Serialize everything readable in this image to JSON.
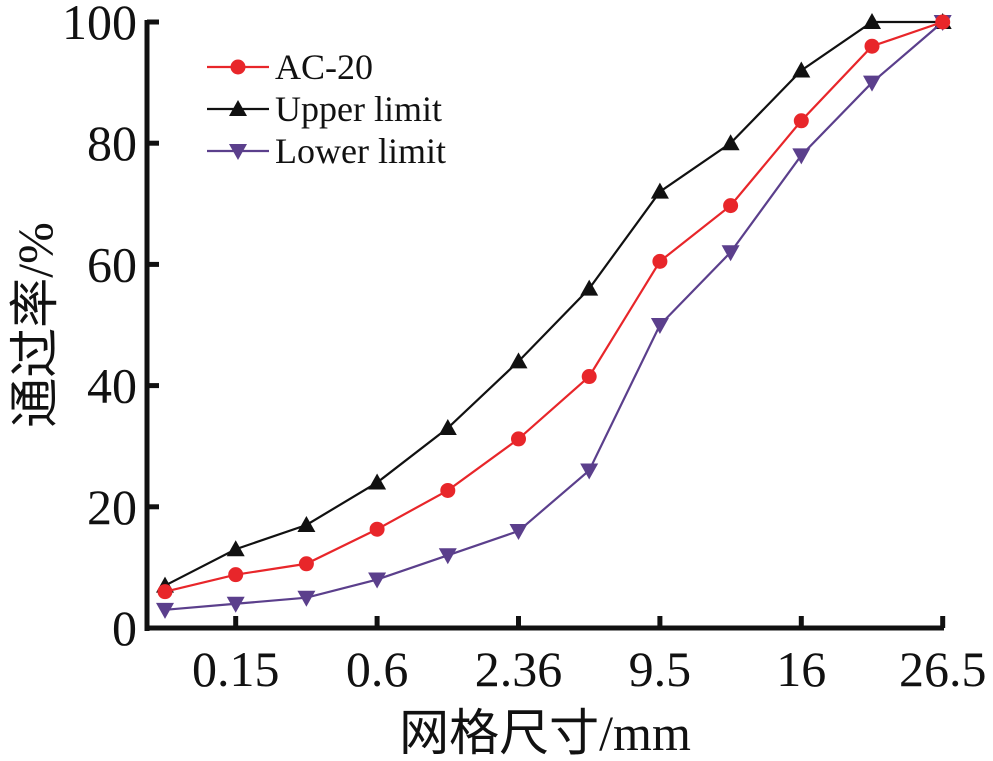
{
  "chart_data": {
    "type": "line",
    "title": "",
    "xlabel": "网格尺寸/mm",
    "ylabel": "通过率/%",
    "ylim": [
      0,
      100
    ],
    "yticks": [
      "0",
      "20",
      "40",
      "60",
      "80",
      "100"
    ],
    "xtick_labels": [
      {
        "index": 1,
        "label": "0.15"
      },
      {
        "index": 3,
        "label": "0.6"
      },
      {
        "index": 5,
        "label": "2.36"
      },
      {
        "index": 7,
        "label": "9.5"
      },
      {
        "index": 9,
        "label": "16"
      },
      {
        "index": 11,
        "label": "26.5"
      }
    ],
    "point_count": 12,
    "grid": false,
    "legend_position": "top-left",
    "series": [
      {
        "name": "AC-20",
        "color": "#e8262a",
        "marker": "circle",
        "values": [
          6,
          8.8,
          10.6,
          16.3,
          22.7,
          31.2,
          41.5,
          60.5,
          69.7,
          83.7,
          96,
          100
        ]
      },
      {
        "name": "Upper limit",
        "color": "#111111",
        "marker": "triangle-up",
        "values": [
          7,
          13,
          17,
          24,
          33,
          44,
          56,
          72,
          80,
          92,
          100,
          100
        ]
      },
      {
        "name": "Lower limit",
        "color": "#5b3f8c",
        "marker": "triangle-down",
        "values": [
          3,
          4,
          5,
          8,
          12,
          16,
          26,
          50,
          62,
          78,
          90,
          100
        ]
      }
    ]
  }
}
